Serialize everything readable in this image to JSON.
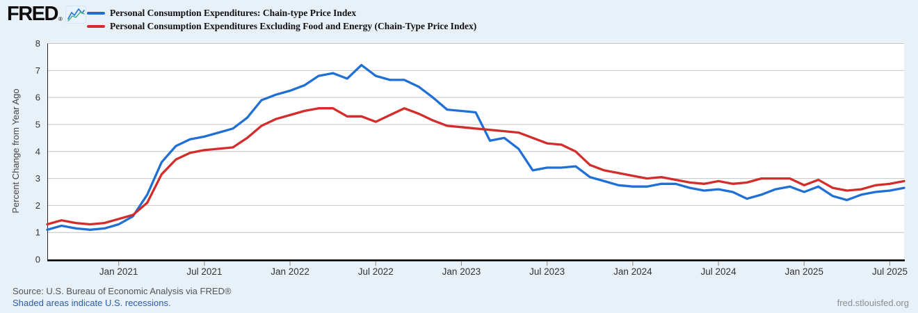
{
  "branding": {
    "logo_text": "FRED",
    "logo_mark": "®",
    "logo_chart_icon": "line-chart-squiggle-icon"
  },
  "legend": [
    {
      "label": "Personal Consumption Expenditures: Chain-type Price Index",
      "color": "#1f6fd4"
    },
    {
      "label": "Personal Consumption Expenditures Excluding Food and Energy (Chain-Type Price Index)",
      "color": "#d22d2b"
    }
  ],
  "footer": {
    "source_line": "Source: U.S. Bureau of Economic Analysis via FRED®",
    "recession_note": "Shaded areas indicate U.S. recessions.",
    "recession_note_color": "#2b5dad",
    "site": "fred.stlouisfed.org"
  },
  "chart_data": {
    "type": "line",
    "title": "",
    "xlabel": "",
    "ylabel": "Percent Change from Year Ago",
    "ylim": [
      0,
      8
    ],
    "yticks": [
      0,
      1,
      2,
      3,
      4,
      5,
      6,
      7,
      8
    ],
    "grid": true,
    "legend_position": "top-left",
    "x_months": [
      "Aug 2020",
      "Sep 2020",
      "Oct 2020",
      "Nov 2020",
      "Dec 2020",
      "Jan 2021",
      "Feb 2021",
      "Mar 2021",
      "Apr 2021",
      "May 2021",
      "Jun 2021",
      "Jul 2021",
      "Aug 2021",
      "Sep 2021",
      "Oct 2021",
      "Nov 2021",
      "Dec 2021",
      "Jan 2022",
      "Feb 2022",
      "Mar 2022",
      "Apr 2022",
      "May 2022",
      "Jun 2022",
      "Jul 2022",
      "Aug 2022",
      "Sep 2022",
      "Oct 2022",
      "Nov 2022",
      "Dec 2022",
      "Jan 2023",
      "Feb 2023",
      "Mar 2023",
      "Apr 2023",
      "May 2023",
      "Jun 2023",
      "Jul 2023",
      "Aug 2023",
      "Sep 2023",
      "Oct 2023",
      "Nov 2023",
      "Dec 2023",
      "Jan 2024",
      "Feb 2024",
      "Mar 2024",
      "Apr 2024",
      "May 2024",
      "Jun 2024",
      "Jul 2024",
      "Aug 2024",
      "Sep 2024",
      "Oct 2024",
      "Nov 2024",
      "Dec 2024",
      "Jan 2025",
      "Feb 2025",
      "Mar 2025",
      "Apr 2025",
      "May 2025",
      "Jun 2025",
      "Jul 2025",
      "Aug 2025"
    ],
    "x_ticks": [
      {
        "index": 5,
        "label": "Jan 2021"
      },
      {
        "index": 11,
        "label": "Jul 2021"
      },
      {
        "index": 17,
        "label": "Jan 2022"
      },
      {
        "index": 23,
        "label": "Jul 2022"
      },
      {
        "index": 29,
        "label": "Jan 2023"
      },
      {
        "index": 35,
        "label": "Jul 2023"
      },
      {
        "index": 41,
        "label": "Jan 2024"
      },
      {
        "index": 47,
        "label": "Jul 2024"
      },
      {
        "index": 53,
        "label": "Jan 2025"
      },
      {
        "index": 59,
        "label": "Jul 2025"
      }
    ],
    "series": [
      {
        "name": "Personal Consumption Expenditures: Chain-type Price Index",
        "color": "#1f6fd4",
        "values": [
          1.1,
          1.25,
          1.15,
          1.1,
          1.15,
          1.3,
          1.6,
          2.4,
          3.6,
          4.2,
          4.45,
          4.55,
          4.7,
          4.85,
          5.25,
          5.9,
          6.1,
          6.25,
          6.45,
          6.8,
          6.9,
          6.7,
          7.2,
          6.8,
          6.65,
          6.65,
          6.4,
          6.0,
          5.55,
          5.5,
          5.45,
          4.4,
          4.5,
          4.1,
          3.3,
          3.4,
          3.4,
          3.45,
          3.05,
          2.9,
          2.75,
          2.7,
          2.7,
          2.8,
          2.8,
          2.65,
          2.55,
          2.6,
          2.5,
          2.25,
          2.4,
          2.6,
          2.7,
          2.5,
          2.7,
          2.35,
          2.2,
          2.4,
          2.5,
          2.55,
          2.65
        ]
      },
      {
        "name": "Personal Consumption Expenditures Excluding Food and Energy (Chain-Type Price Index)",
        "color": "#d22d2b",
        "values": [
          1.3,
          1.45,
          1.35,
          1.3,
          1.35,
          1.5,
          1.65,
          2.1,
          3.15,
          3.7,
          3.95,
          4.05,
          4.1,
          4.15,
          4.5,
          4.95,
          5.2,
          5.35,
          5.5,
          5.6,
          5.6,
          5.3,
          5.3,
          5.1,
          5.35,
          5.6,
          5.4,
          5.15,
          4.95,
          4.9,
          4.85,
          4.8,
          4.75,
          4.7,
          4.5,
          4.3,
          4.25,
          4.0,
          3.5,
          3.3,
          3.2,
          3.1,
          3.0,
          3.05,
          2.95,
          2.85,
          2.8,
          2.9,
          2.8,
          2.85,
          3.0,
          3.0,
          3.0,
          2.75,
          2.95,
          2.65,
          2.55,
          2.6,
          2.75,
          2.8,
          2.9
        ]
      }
    ],
    "colors": {
      "background": "#e8f0f8",
      "plot_background": "#ffffff",
      "gridline": "#c4c4c4",
      "axis": "#000000",
      "tick_label": "#333333"
    }
  }
}
